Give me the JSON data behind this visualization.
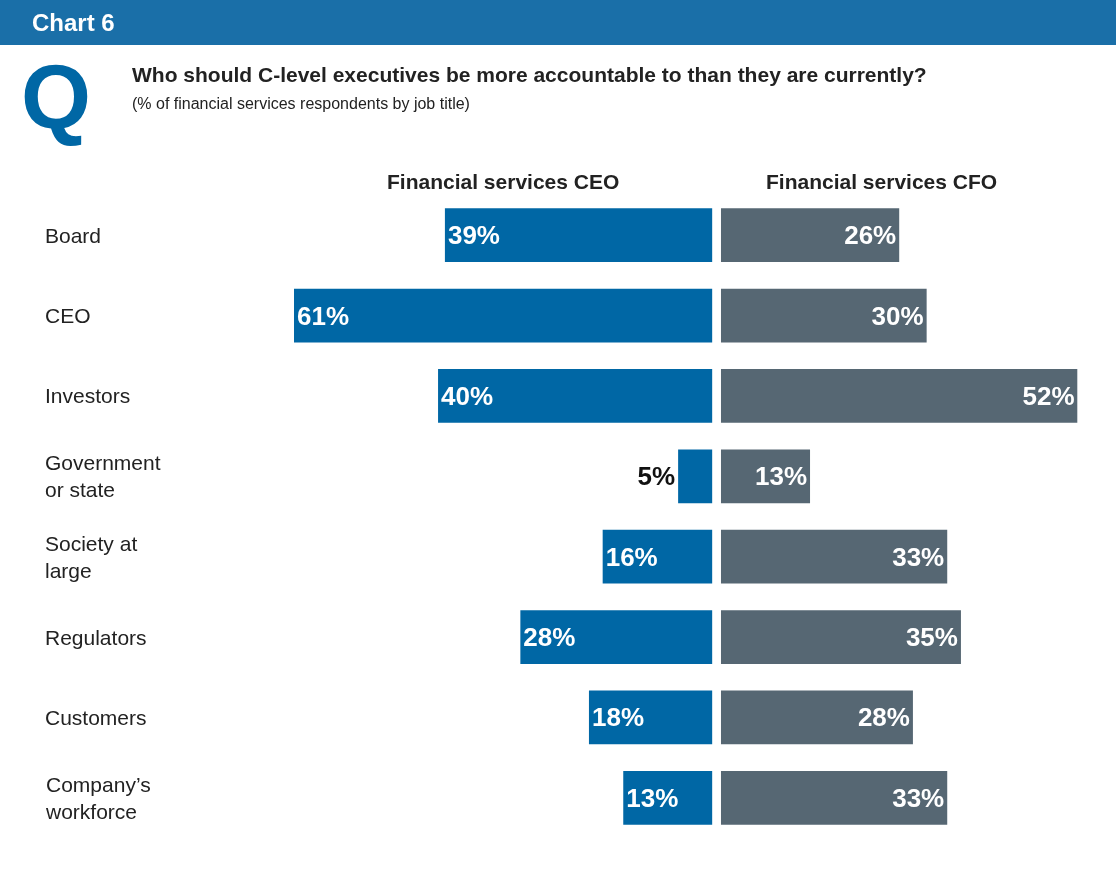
{
  "chart_data": [
    {
      "type": "bar",
      "orientation": "horizontal",
      "title": "Who should C-level executives be more accountable to than they are currently?",
      "subtitle": "(% of financial services respondents by job title)",
      "categories": [
        "Board",
        "CEO",
        "Investors",
        "Government or state",
        "Society at large",
        "Regulators",
        "Customers",
        "Company’s workforce"
      ],
      "series": [
        {
          "name": "Financial services CEO",
          "color": "#0067a5",
          "values": [
            39,
            61,
            40,
            5,
            16,
            28,
            18,
            13
          ],
          "value_labels": [
            "39%",
            "61%",
            "40%",
            "5%",
            "16%",
            "28%",
            "18%",
            "13%"
          ]
        }
      ],
      "legend": false,
      "annotations": [
        "Chart 6",
        "Q"
      ]
    },
    {
      "type": "bar",
      "orientation": "horizontal",
      "tick_labels": false,
      "categories": [
        "Board",
        "CEO",
        "Investors",
        "Government or state",
        "Society at large",
        "Regulators",
        "Customers",
        "Company’s workforce"
      ],
      "series": [
        {
          "name": "Financial services CFO",
          "color": "#566773",
          "values": [
            26,
            30,
            52,
            13,
            33,
            35,
            28,
            33
          ],
          "value_labels": [
            "26%",
            "30%",
            "52%",
            "13%",
            "33%",
            "35%",
            "28%",
            "33%"
          ]
        }
      ],
      "legend": false
    }
  ]
}
